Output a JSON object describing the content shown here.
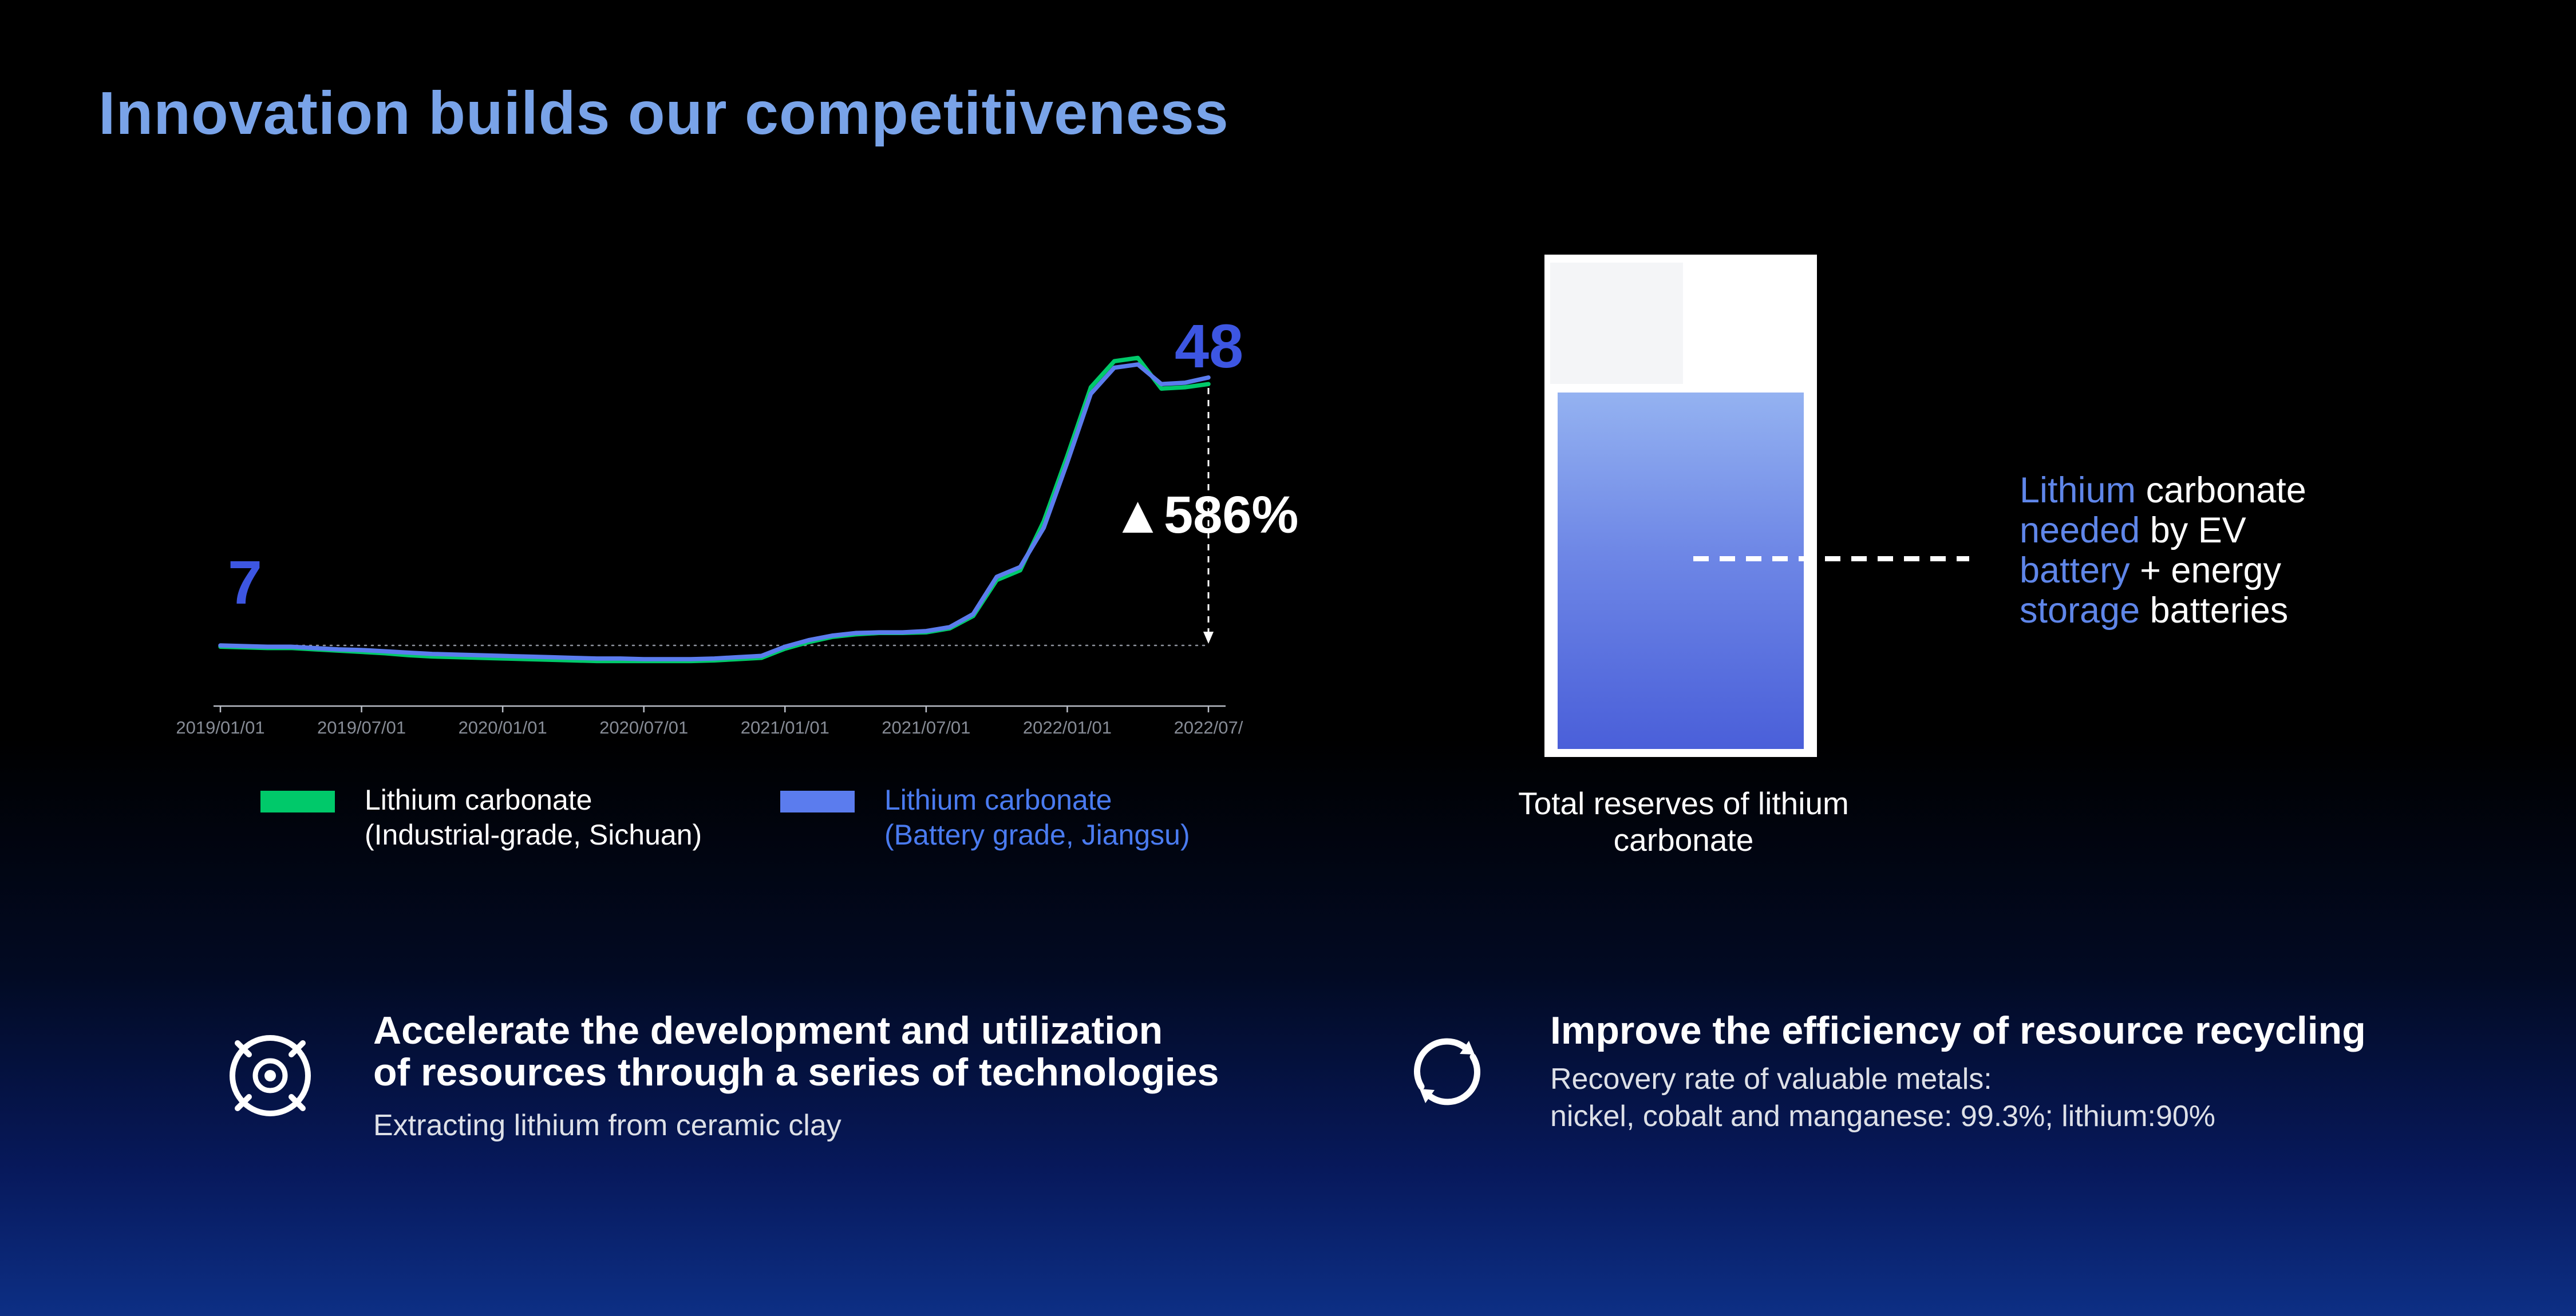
{
  "page": {
    "title": "Innovation builds our competitiveness"
  },
  "colors": {
    "title_blue": "#79a3e8",
    "number_blue": "#3d56e2",
    "line_green": "#00c96a",
    "line_blue": "#5b7cee",
    "tank_fill_top": "#94b2f1",
    "tank_fill_bottom": "#4a5fd9",
    "background_bottom": "#0d2f85"
  },
  "chart_data": {
    "type": "line",
    "title": "",
    "xlabel": "",
    "ylabel": "",
    "x_unit": "month",
    "x_ticks": [
      "2019/01/01",
      "2019/07/01",
      "2020/01/01",
      "2020/07/01",
      "2021/01/01",
      "2021/07/01",
      "2022/01/01",
      "2022/07/"
    ],
    "baseline_value": 7,
    "start_label": "7",
    "end_label": "48",
    "delta_label": "▲586%",
    "grid": false,
    "legend_position": "bottom",
    "series": [
      {
        "name": "Lithium carbonate (Industrial-grade, Sichuan)",
        "color": "#00c96a",
        "text_color": "#ffffff",
        "values": [
          6.8,
          6.7,
          6.6,
          6.6,
          6.4,
          6.2,
          6.0,
          5.8,
          5.5,
          5.3,
          5.2,
          5.1,
          5.0,
          4.9,
          4.8,
          4.7,
          4.6,
          4.6,
          4.6,
          4.6,
          4.6,
          4.7,
          4.9,
          5.1,
          6.5,
          7.5,
          8.3,
          8.7,
          8.9,
          8.9,
          9.0,
          9.6,
          11.5,
          17.0,
          18.5,
          26.0,
          36.0,
          46.5,
          50.5,
          51.0,
          46.3,
          46.5,
          47.0
        ]
      },
      {
        "name": "Lithium carbonate (Battery grade, Jiangsu)",
        "color": "#5b7cee",
        "text_color": "#4a7bf0",
        "values": [
          7.0,
          6.9,
          6.8,
          6.8,
          6.6,
          6.4,
          6.3,
          6.1,
          5.9,
          5.7,
          5.6,
          5.5,
          5.4,
          5.3,
          5.2,
          5.1,
          5.0,
          5.0,
          4.9,
          4.9,
          4.9,
          5.0,
          5.2,
          5.4,
          6.8,
          7.8,
          8.5,
          8.9,
          9.0,
          9.0,
          9.2,
          9.8,
          11.8,
          17.5,
          19.0,
          25.0,
          35.0,
          45.5,
          49.5,
          50.0,
          47.0,
          47.2,
          48.0
        ]
      }
    ],
    "legend": [
      {
        "label": "Lithium carbonate\n(Industrial-grade, Sichuan)"
      },
      {
        "label": "Lithium carbonate\n(Battery grade, Jiangsu)"
      }
    ]
  },
  "tank": {
    "caption": "Total reserves of lithium carbonate",
    "label_lines": [
      {
        "blue": "Lithium ",
        "white": "carbonate"
      },
      {
        "blue": "needed ",
        "white": "by EV"
      },
      {
        "blue": "battery ",
        "white": "+ energy"
      },
      {
        "blue": "storage ",
        "white": "batteries"
      }
    ]
  },
  "features": [
    {
      "icon": "target-icon",
      "title": "Accelerate the development and utilization\nof resources through a series of technologies",
      "subtitle": "Extracting lithium from ceramic clay"
    },
    {
      "icon": "recycle-icon",
      "title": "Improve the efficiency of resource recycling",
      "subtitle": "Recovery rate of valuable metals:\nnickel, cobalt and  manganese: 99.3%; lithium:90%"
    }
  ]
}
